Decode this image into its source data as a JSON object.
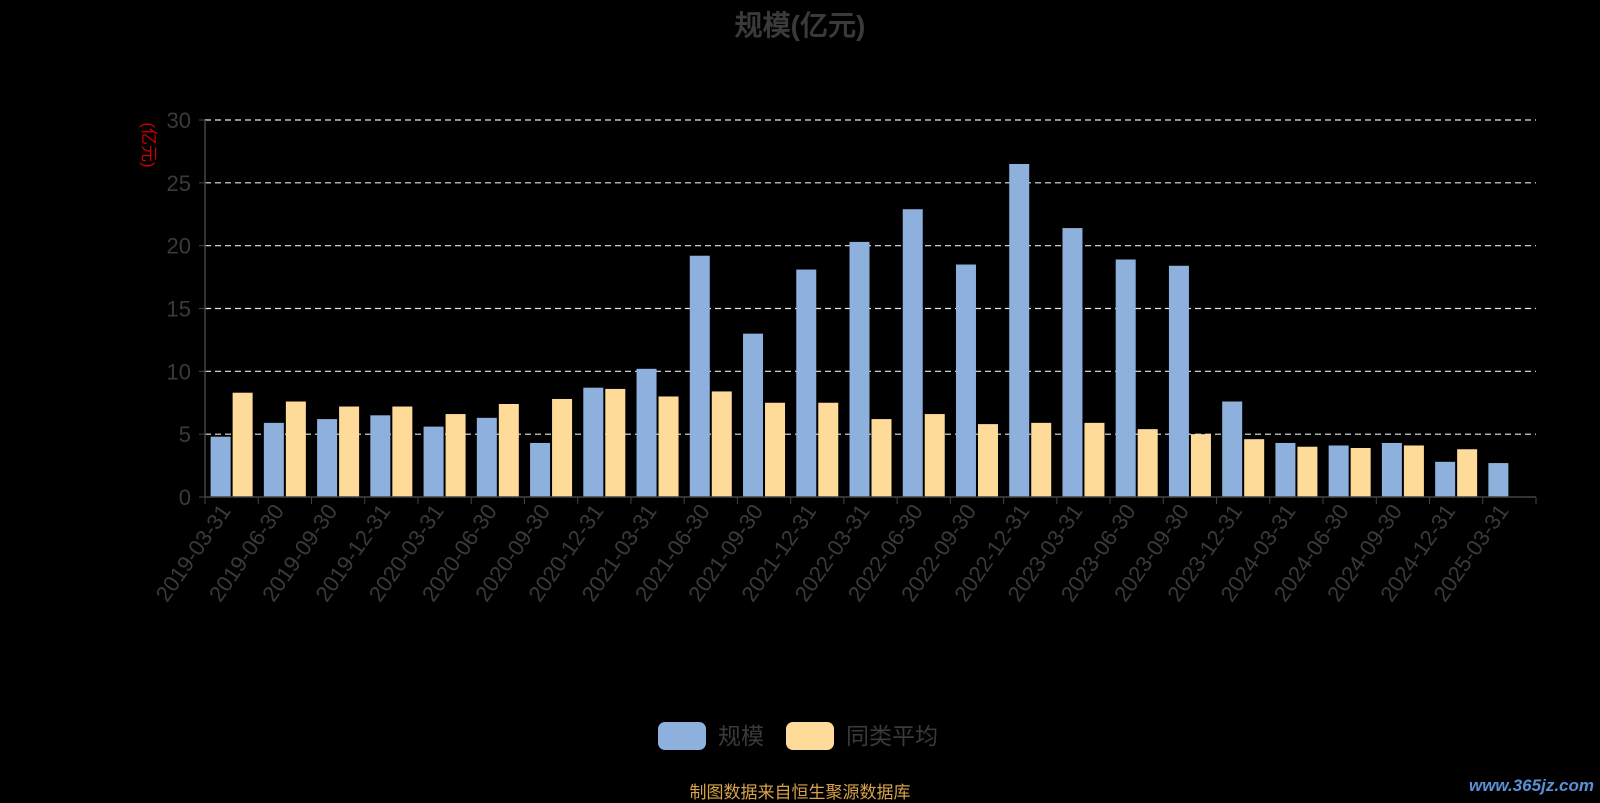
{
  "title": "规模(亿元)",
  "source_text": "制图数据来自恒生聚源数据库",
  "watermark": "www.365jz.com",
  "chart_data": {
    "type": "bar",
    "title": "规模(亿元)",
    "ylabel": "(亿元)",
    "xlabel": "",
    "ylim": [
      0,
      30
    ],
    "yticks": [
      0,
      5,
      10,
      15,
      20,
      25,
      30
    ],
    "grid": true,
    "legend_position": "bottom",
    "categories": [
      "2019-03-31",
      "2019-06-30",
      "2019-09-30",
      "2019-12-31",
      "2020-03-31",
      "2020-06-30",
      "2020-09-30",
      "2020-12-31",
      "2021-03-31",
      "2021-06-30",
      "2021-09-30",
      "2021-12-31",
      "2022-03-31",
      "2022-06-30",
      "2022-09-30",
      "2022-12-31",
      "2023-03-31",
      "2023-06-30",
      "2023-09-30",
      "2023-12-31",
      "2024-03-31",
      "2024-06-30",
      "2024-09-30",
      "2024-12-31",
      "2025-03-31"
    ],
    "series": [
      {
        "name": "规模",
        "color": "#8eb0dc",
        "values": [
          4.8,
          5.9,
          6.2,
          6.5,
          5.6,
          6.3,
          4.3,
          8.7,
          10.2,
          19.2,
          13.0,
          18.1,
          20.3,
          22.9,
          18.5,
          26.5,
          21.4,
          18.9,
          18.4,
          7.6,
          4.3,
          4.1,
          4.3,
          2.8,
          2.7
        ]
      },
      {
        "name": "同类平均",
        "color": "#ffdb99",
        "values": [
          8.3,
          7.6,
          7.2,
          7.2,
          6.6,
          7.4,
          7.8,
          8.6,
          8.0,
          8.4,
          7.5,
          7.5,
          6.2,
          6.6,
          5.8,
          5.9,
          5.9,
          5.4,
          5.0,
          4.6,
          4.0,
          3.9,
          4.1,
          3.8,
          null
        ]
      }
    ]
  }
}
